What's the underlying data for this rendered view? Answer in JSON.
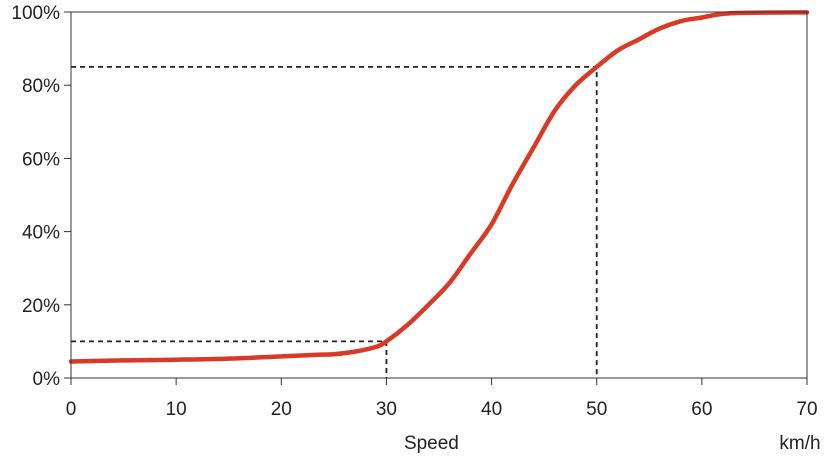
{
  "chart_data": {
    "type": "line",
    "title": "",
    "xlabel": "Speed",
    "xunit": "km/h",
    "ylabel": "",
    "xlim": [
      0,
      70
    ],
    "ylim": [
      0,
      100
    ],
    "x_ticks": [
      "0",
      "10",
      "20",
      "30",
      "40",
      "50",
      "60",
      "70"
    ],
    "y_ticks": [
      "0%",
      "20%",
      "40%",
      "60%",
      "80%",
      "100%"
    ],
    "grid": false,
    "series": [
      {
        "color": "#d93a25",
        "x": [
          0,
          5,
          10,
          15,
          20,
          23,
          25,
          27,
          29,
          30,
          32,
          34,
          36,
          38,
          40,
          42,
          44,
          46,
          48,
          50,
          52,
          54,
          56,
          58,
          60,
          62,
          65,
          70
        ],
        "y": [
          4.5,
          4.8,
          5.0,
          5.3,
          5.9,
          6.3,
          6.5,
          7.2,
          8.5,
          10,
          14.5,
          20,
          26,
          34,
          42,
          53,
          63,
          73,
          80,
          85,
          89.5,
          92.5,
          95.5,
          97.5,
          98.5,
          99.5,
          99.8,
          99.9
        ]
      }
    ],
    "reference_lines": [
      {
        "x": 30,
        "y": 10,
        "style": "dashed"
      },
      {
        "x": 50,
        "y": 85,
        "style": "dashed"
      }
    ],
    "colors": {
      "line": "#d93a25",
      "axis": "#333333",
      "reference": "#222222"
    }
  }
}
